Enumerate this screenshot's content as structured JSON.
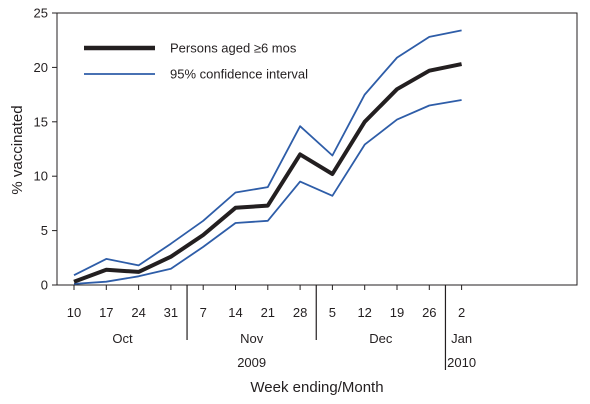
{
  "chart_data": {
    "type": "line",
    "xlabel": "Week ending/Month",
    "ylabel": "% vaccinated",
    "ylim": [
      0,
      25
    ],
    "yticks": [
      "0",
      "5",
      "10",
      "15",
      "20",
      "25"
    ],
    "week_labels": [
      "10",
      "17",
      "24",
      "31",
      "7",
      "14",
      "21",
      "28",
      "5",
      "12",
      "19",
      "26",
      "2"
    ],
    "months": [
      {
        "label": "Oct",
        "from": 0,
        "to": 3
      },
      {
        "label": "Nov",
        "from": 4,
        "to": 7
      },
      {
        "label": "Dec",
        "from": 8,
        "to": 11
      },
      {
        "label": "Jan",
        "from": 12,
        "to": 12
      }
    ],
    "years": [
      {
        "label": "2009",
        "from": 0,
        "to": 11
      },
      {
        "label": "2010",
        "from": 12,
        "to": 12
      }
    ],
    "grid": false,
    "legend_position": "top-left",
    "series": [
      {
        "name": "Persons aged ≥6 mos",
        "role": "estimate",
        "color": "#231f20",
        "values": [
          0.3,
          1.4,
          1.2,
          2.6,
          4.6,
          7.1,
          7.3,
          12.0,
          10.2,
          15.0,
          18.0,
          19.7,
          20.3
        ]
      },
      {
        "name": "95% confidence interval",
        "role": "ci-upper",
        "color": "#2e5da8",
        "values": [
          0.9,
          2.4,
          1.8,
          3.8,
          5.9,
          8.5,
          9.0,
          14.6,
          11.9,
          17.5,
          20.9,
          22.8,
          23.4
        ]
      },
      {
        "role": "ci-lower",
        "color": "#2e5da8",
        "values": [
          0.1,
          0.3,
          0.8,
          1.5,
          3.5,
          5.7,
          5.9,
          9.5,
          8.2,
          12.9,
          15.2,
          16.5,
          17.0
        ]
      }
    ]
  }
}
